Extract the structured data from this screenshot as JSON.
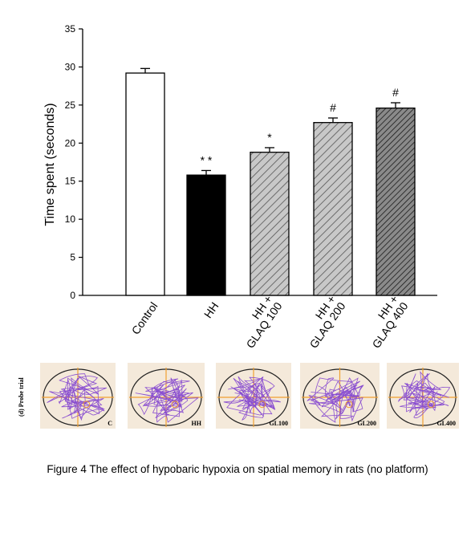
{
  "chart_data": {
    "type": "bar",
    "ylabel": "Time spent (seconds)",
    "ylim": [
      0,
      35
    ],
    "yticks": [
      0,
      5,
      10,
      15,
      20,
      25,
      30,
      35
    ],
    "categories": [
      "Control",
      "HH",
      "HH + GLAQ 100",
      "HH + GLAQ 200",
      "HH + GLAQ 400"
    ],
    "category_lines": [
      [
        "Control"
      ],
      [
        "HH"
      ],
      [
        "HH +",
        "GLAQ 100"
      ],
      [
        "HH +",
        "GLAQ 200"
      ],
      [
        "HH +",
        "GLAQ 400"
      ]
    ],
    "values": [
      29.2,
      15.8,
      18.8,
      22.7,
      24.6
    ],
    "errors": [
      0.6,
      0.6,
      0.6,
      0.6,
      0.7
    ],
    "significance": [
      "",
      "* *",
      "*",
      "#",
      "#"
    ],
    "bar_fills": [
      "white",
      "black",
      "hatch-light",
      "hatch-light",
      "hatch-dark"
    ],
    "grid": false
  },
  "probe_trial": {
    "label": "(d) Probe trial",
    "panels": [
      "C",
      "HH",
      "GL100",
      "GL200",
      "GL400"
    ],
    "colors": {
      "background": "#f4e9da",
      "axes": "#f0a030",
      "path": "#8a4fd0",
      "platform": "#f0a030"
    }
  },
  "caption": "Figure 4 The effect of hypobaric hypoxia on spatial memory in rats (no platform)"
}
